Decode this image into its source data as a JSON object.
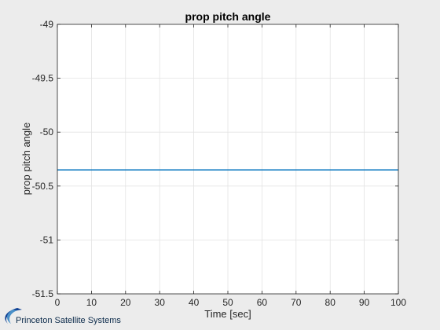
{
  "chart_data": {
    "type": "line",
    "title": "prop pitch angle",
    "xlabel": "Time [sec]",
    "ylabel": "prop pitch angle",
    "xlim": [
      0,
      100
    ],
    "ylim": [
      -51.5,
      -49
    ],
    "xticks": [
      0,
      10,
      20,
      30,
      40,
      50,
      60,
      70,
      80,
      90,
      100
    ],
    "yticks": [
      -51.5,
      -51,
      -50.5,
      -50,
      -49.5,
      -49
    ],
    "ytick_labels": [
      "-51.5",
      "-51",
      "-50.5",
      "-50",
      "-49.5",
      "-49"
    ],
    "grid": true,
    "series": [
      {
        "x": [
          0,
          100
        ],
        "y": [
          -50.35,
          -50.35
        ],
        "color": "#0072bd"
      }
    ]
  },
  "logo": {
    "text": "Princeton Satellite Systems"
  }
}
